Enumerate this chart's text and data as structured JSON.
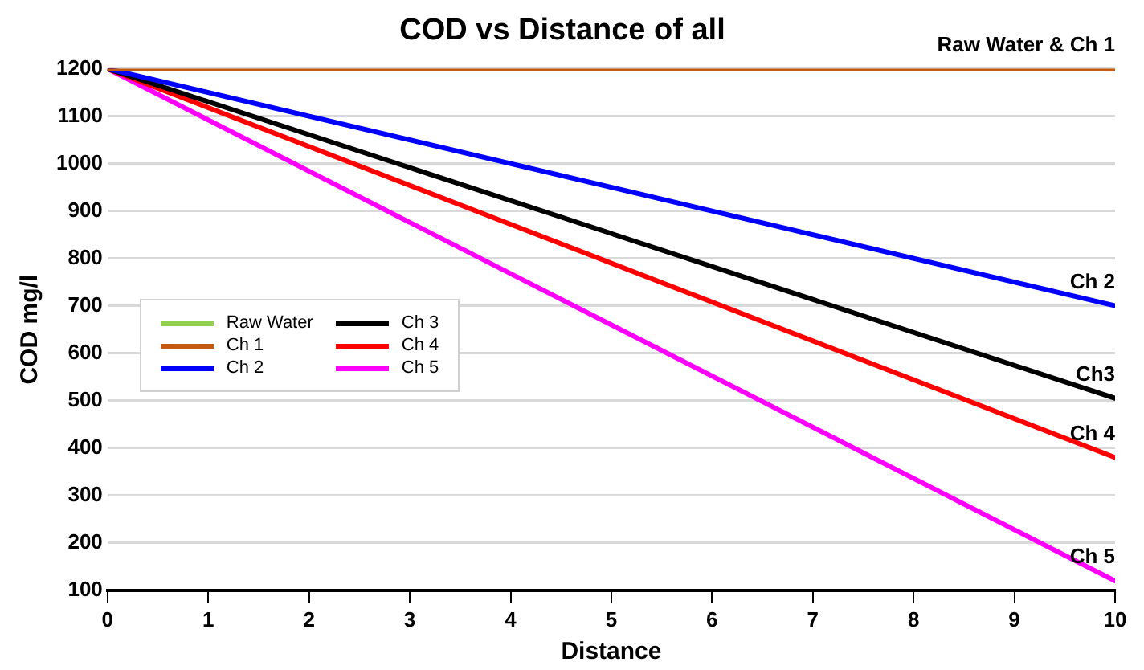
{
  "chart_data": {
    "type": "line",
    "title": "COD vs Distance of all",
    "xlabel": "Distance",
    "ylabel": "COD mg/l",
    "x": [
      0,
      10
    ],
    "xlim": [
      0,
      10
    ],
    "xticks": [
      0,
      1,
      2,
      3,
      4,
      5,
      6,
      7,
      8,
      9,
      10
    ],
    "ylim": [
      100,
      1200
    ],
    "yticks": [
      100,
      200,
      300,
      400,
      500,
      600,
      700,
      800,
      900,
      1000,
      1100,
      1200
    ],
    "grid": "y",
    "legend": "left",
    "marker": "none",
    "line_style": "solid",
    "series": [
      {
        "name": "Raw Water",
        "color": "#92d050",
        "values": [
          null,
          null
        ]
      },
      {
        "name": "Ch 1",
        "color": "#c55a11",
        "values": [
          1200,
          1200
        ]
      },
      {
        "name": "Ch 2",
        "color": "#0000ff",
        "values": [
          1200,
          700
        ]
      },
      {
        "name": "Ch 3",
        "color": "#000000",
        "values": [
          1200,
          505
        ]
      },
      {
        "name": "Ch 4",
        "color": "#ff0000",
        "values": [
          1200,
          380
        ]
      },
      {
        "name": "Ch 5",
        "color": "#ff00ff",
        "values": [
          1200,
          120
        ]
      }
    ],
    "annotations": [
      {
        "text": "Raw Water & Ch 1",
        "y": 1200
      },
      {
        "text": "Ch 2",
        "y": 700
      },
      {
        "text": "Ch3",
        "y": 505
      },
      {
        "text": "Ch 4",
        "y": 380
      },
      {
        "text": "Ch 5",
        "y": 120
      }
    ]
  }
}
